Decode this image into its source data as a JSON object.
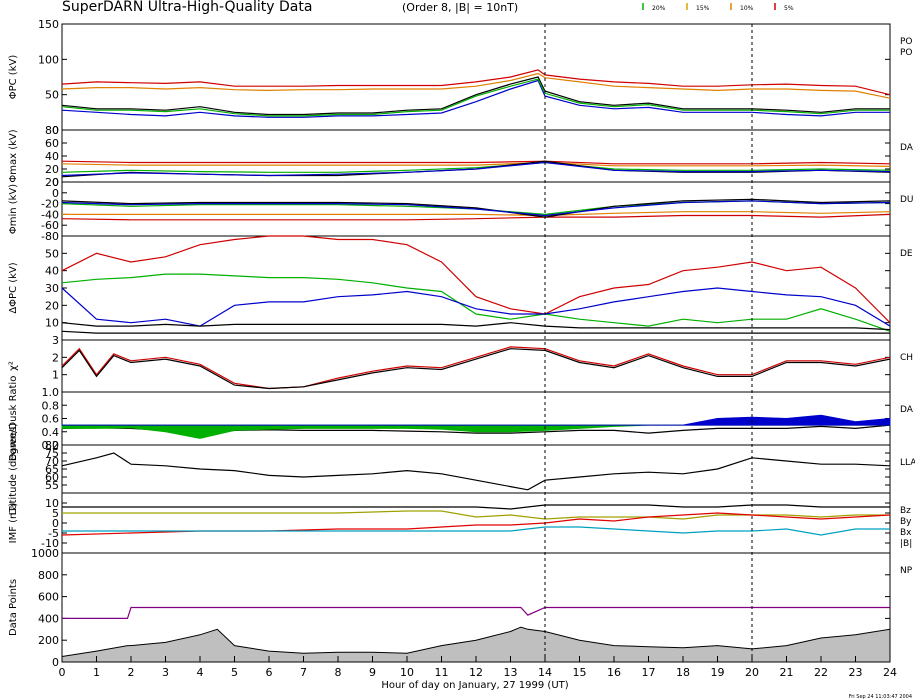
{
  "header": {
    "title": "SuperDARN Ultra-High-Quality Data",
    "subtitle": "(Order 8, |B| = 10nT)",
    "legend": [
      {
        "label": "20%",
        "color": "#00b000"
      },
      {
        "label": "15%",
        "color": "#e0a000"
      },
      {
        "label": "10%",
        "color": "#e08000"
      },
      {
        "label": "5%",
        "color": "#d00000"
      }
    ]
  },
  "footer": {
    "xlabel": "Hour of day on January, 27 1999 (UT)",
    "timestamp": "Fri Sep 24 11:03:47 2004"
  },
  "markers": {
    "vertical_lines_hours": [
      14,
      20
    ]
  },
  "chart_data": [
    {
      "type": "line",
      "ylabel": "ΦPC (kV)",
      "ylim": [
        0,
        150
      ],
      "yticks": [
        "0",
        "50",
        "100",
        "150"
      ],
      "right_labels": [
        "PO",
        "PO"
      ],
      "x": [
        0,
        1,
        2,
        3,
        4,
        5,
        6,
        7,
        8,
        9,
        10,
        11,
        12,
        13,
        13.8,
        14,
        15,
        16,
        17,
        18,
        19,
        20,
        21,
        22,
        23,
        24
      ],
      "series": [
        {
          "color": "#d00000",
          "values": [
            65,
            68,
            67,
            66,
            68,
            62,
            62,
            62,
            63,
            63,
            63,
            63,
            68,
            75,
            85,
            78,
            72,
            68,
            66,
            62,
            62,
            64,
            65,
            63,
            62,
            50
          ]
        },
        {
          "color": "#e08000",
          "values": [
            58,
            60,
            60,
            58,
            60,
            57,
            56,
            57,
            57,
            58,
            58,
            58,
            62,
            70,
            80,
            74,
            68,
            62,
            60,
            58,
            56,
            58,
            58,
            56,
            55,
            45
          ]
        },
        {
          "color": "#000000",
          "values": [
            35,
            30,
            30,
            28,
            33,
            25,
            22,
            22,
            24,
            24,
            28,
            30,
            50,
            65,
            75,
            55,
            40,
            35,
            38,
            30,
            30,
            30,
            28,
            25,
            30,
            30
          ]
        },
        {
          "color": "#0000cc",
          "values": [
            28,
            25,
            22,
            20,
            25,
            20,
            18,
            18,
            20,
            20,
            22,
            24,
            40,
            58,
            70,
            48,
            35,
            30,
            32,
            25,
            25,
            25,
            22,
            20,
            25,
            25
          ]
        },
        {
          "color": "#00b000",
          "values": [
            33,
            28,
            28,
            26,
            30,
            23,
            20,
            20,
            22,
            22,
            26,
            28,
            48,
            62,
            72,
            52,
            38,
            33,
            36,
            28,
            28,
            28,
            26,
            23,
            28,
            28
          ]
        }
      ]
    },
    {
      "type": "line",
      "ylabel": "Φmax (kV)",
      "ylim": [
        0,
        80
      ],
      "yticks": [
        "0",
        "20",
        "40",
        "60",
        "80"
      ],
      "right_labels": [
        "DA"
      ],
      "x": [
        0,
        2,
        4,
        6,
        8,
        10,
        12,
        14,
        16,
        18,
        20,
        22,
        24
      ],
      "series": [
        {
          "color": "#d00000",
          "values": [
            32,
            30,
            30,
            30,
            30,
            30,
            30,
            32,
            28,
            28,
            28,
            30,
            28
          ]
        },
        {
          "color": "#e08000",
          "values": [
            28,
            26,
            26,
            26,
            26,
            26,
            26,
            30,
            25,
            25,
            25,
            26,
            24
          ]
        },
        {
          "color": "#00b000",
          "values": [
            15,
            18,
            16,
            15,
            15,
            18,
            22,
            30,
            20,
            18,
            18,
            20,
            18
          ]
        },
        {
          "color": "#000000",
          "values": [
            8,
            15,
            12,
            10,
            10,
            15,
            20,
            32,
            18,
            15,
            15,
            18,
            15
          ]
        },
        {
          "color": "#0000cc",
          "values": [
            10,
            14,
            12,
            10,
            12,
            15,
            20,
            30,
            18,
            16,
            16,
            18,
            16
          ]
        }
      ]
    },
    {
      "type": "line",
      "ylabel": "Φmin (kV)",
      "ylim": [
        -80,
        20
      ],
      "yticks": [
        "-80",
        "-60",
        "-40",
        "-20",
        "0",
        "20"
      ],
      "right_labels": [
        "DU"
      ],
      "x": [
        0,
        2,
        4,
        6,
        8,
        10,
        12,
        14,
        16,
        18,
        20,
        22,
        24
      ],
      "series": [
        {
          "color": "#d00000",
          "values": [
            -48,
            -50,
            -50,
            -50,
            -50,
            -50,
            -48,
            -45,
            -45,
            -42,
            -42,
            -45,
            -40
          ]
        },
        {
          "color": "#e08000",
          "values": [
            -40,
            -40,
            -40,
            -40,
            -40,
            -40,
            -40,
            -42,
            -38,
            -35,
            -35,
            -38,
            -35
          ]
        },
        {
          "color": "#00b000",
          "values": [
            -20,
            -25,
            -22,
            -22,
            -22,
            -25,
            -30,
            -40,
            -25,
            -18,
            -15,
            -20,
            -18
          ]
        },
        {
          "color": "#000000",
          "values": [
            -15,
            -20,
            -18,
            -18,
            -18,
            -20,
            -28,
            -45,
            -25,
            -15,
            -12,
            -18,
            -15
          ]
        },
        {
          "color": "#0000cc",
          "values": [
            -18,
            -22,
            -20,
            -20,
            -20,
            -22,
            -30,
            -42,
            -28,
            -18,
            -15,
            -20,
            -18
          ]
        }
      ]
    },
    {
      "type": "line",
      "ylabel": "ΔΦPC (kV)",
      "ylim": [
        0,
        60
      ],
      "yticks": [
        "10",
        "20",
        "30",
        "40",
        "50"
      ],
      "right_labels": [
        "DE"
      ],
      "x": [
        0,
        1,
        2,
        3,
        4,
        5,
        6,
        7,
        8,
        9,
        10,
        11,
        12,
        13,
        14,
        15,
        16,
        17,
        18,
        19,
        20,
        21,
        22,
        23,
        24
      ],
      "series": [
        {
          "color": "#d00000",
          "values": [
            40,
            50,
            45,
            48,
            55,
            58,
            60,
            60,
            58,
            58,
            55,
            45,
            25,
            18,
            15,
            25,
            30,
            32,
            40,
            42,
            45,
            40,
            42,
            30,
            10
          ]
        },
        {
          "color": "#00b000",
          "values": [
            33,
            35,
            36,
            38,
            38,
            37,
            36,
            36,
            35,
            33,
            30,
            28,
            15,
            12,
            15,
            12,
            10,
            8,
            12,
            10,
            12,
            12,
            18,
            12,
            5
          ]
        },
        {
          "color": "#0000cc",
          "values": [
            30,
            12,
            10,
            12,
            8,
            20,
            22,
            22,
            25,
            26,
            28,
            25,
            18,
            15,
            15,
            18,
            22,
            25,
            28,
            30,
            28,
            26,
            25,
            20,
            8
          ]
        },
        {
          "color": "#000000",
          "values": [
            10,
            8,
            8,
            9,
            8,
            9,
            9,
            9,
            9,
            9,
            9,
            9,
            8,
            10,
            8,
            7,
            7,
            7,
            7,
            7,
            7,
            7,
            7,
            7,
            6
          ]
        },
        {
          "color": "#000000",
          "values": [
            5,
            4,
            4,
            4,
            4,
            4,
            4,
            4,
            4,
            4,
            4,
            4,
            4,
            4,
            4,
            4,
            4,
            4,
            4,
            4,
            4,
            4,
            4,
            4,
            4
          ]
        }
      ]
    },
    {
      "type": "line",
      "ylabel": "χ²",
      "ylim": [
        0,
        3
      ],
      "yticks": [
        "1",
        "2",
        "3"
      ],
      "right_labels": [
        "CH"
      ],
      "x": [
        0,
        0.5,
        1,
        1.5,
        2,
        3,
        4,
        5,
        6,
        7,
        8,
        9,
        10,
        11,
        12,
        13,
        14,
        15,
        16,
        17,
        18,
        19,
        20,
        21,
        22,
        23,
        24
      ],
      "series": [
        {
          "color": "#d00000",
          "values": [
            1.5,
            2.5,
            1,
            2.2,
            1.8,
            2,
            1.6,
            0.5,
            0.2,
            0.3,
            0.8,
            1.2,
            1.5,
            1.4,
            2,
            2.6,
            2.5,
            1.8,
            1.5,
            2.2,
            1.5,
            1,
            1,
            1.8,
            1.8,
            1.6,
            2
          ]
        },
        {
          "color": "#000000",
          "values": [
            1.4,
            2.4,
            0.9,
            2.1,
            1.7,
            1.9,
            1.5,
            0.4,
            0.2,
            0.3,
            0.7,
            1.1,
            1.4,
            1.3,
            1.9,
            2.5,
            2.4,
            1.7,
            1.4,
            2.1,
            1.4,
            0.9,
            0.9,
            1.7,
            1.7,
            1.5,
            1.9
          ]
        }
      ]
    },
    {
      "type": "area",
      "ylabel": "Dawn/Dusk Ratio",
      "ylim": [
        0.2,
        1
      ],
      "yticks": [
        "0.2",
        "0.4",
        "0.6",
        "0.8",
        "1.0"
      ],
      "right_labels": [
        "DA"
      ],
      "x": [
        0,
        1,
        2,
        3,
        4,
        5,
        6,
        7,
        8,
        9,
        10,
        11,
        12,
        13,
        14,
        15,
        16,
        17,
        18,
        19,
        20,
        21,
        22,
        23,
        24
      ],
      "series": [
        {
          "color": "#000000",
          "values": [
            0.45,
            0.46,
            0.45,
            0.42,
            0.35,
            0.42,
            0.43,
            0.42,
            0.42,
            0.42,
            0.41,
            0.4,
            0.38,
            0.38,
            0.4,
            0.42,
            0.42,
            0.38,
            0.42,
            0.45,
            0.45,
            0.45,
            0.48,
            0.45,
            0.5
          ]
        },
        {
          "color": "#00b000",
          "name_hint": "fill below 0.5",
          "values": [
            0.45,
            0.45,
            0.46,
            0.4,
            0.3,
            0.42,
            0.44,
            0.45,
            0.45,
            0.45,
            0.45,
            0.44,
            0.4,
            0.4,
            0.42,
            0.45,
            0.48,
            0.5,
            0.5,
            0.5,
            0.5,
            0.5,
            0.5,
            0.5,
            0.5
          ]
        },
        {
          "color": "#0000cc",
          "name_hint": "fill above 0.5",
          "values": [
            0.5,
            0.5,
            0.5,
            0.5,
            0.5,
            0.5,
            0.5,
            0.5,
            0.5,
            0.5,
            0.5,
            0.5,
            0.5,
            0.5,
            0.5,
            0.5,
            0.5,
            0.5,
            0.5,
            0.6,
            0.62,
            0.6,
            0.65,
            0.55,
            0.6
          ]
        }
      ]
    },
    {
      "type": "line",
      "ylabel": "Latitude (degrees)",
      "ylim": [
        50,
        80
      ],
      "yticks": [
        "55",
        "60",
        "65",
        "70",
        "75",
        "80"
      ],
      "right_labels": [
        "LLA"
      ],
      "x": [
        0,
        1,
        1.5,
        2,
        3,
        4,
        5,
        6,
        7,
        8,
        9,
        10,
        11,
        12,
        13,
        13.5,
        14,
        15,
        16,
        17,
        18,
        19,
        20,
        21,
        22,
        23,
        24
      ],
      "series": [
        {
          "color": "#000000",
          "values": [
            67,
            72,
            75,
            68,
            67,
            65,
            64,
            61,
            60,
            61,
            62,
            64,
            62,
            58,
            54,
            52,
            58,
            60,
            62,
            63,
            62,
            65,
            72,
            70,
            68,
            68,
            67
          ]
        }
      ]
    },
    {
      "type": "line",
      "ylabel": "IMF (nT)",
      "ylim": [
        -15,
        15
      ],
      "yticks": [
        "-10",
        "-5",
        "0",
        "5",
        "10"
      ],
      "right_labels": [
        "Bz",
        "By",
        "Bx",
        "|B|"
      ],
      "x": [
        0,
        2,
        4,
        6,
        8,
        10,
        11,
        12,
        13,
        14,
        15,
        16,
        17,
        18,
        19,
        20,
        21,
        22,
        23,
        24
      ],
      "series": [
        {
          "color": "#000000",
          "values": [
            8,
            8,
            8,
            8,
            8,
            8,
            8,
            8,
            7,
            9,
            9,
            9,
            9,
            8,
            8,
            9,
            9,
            8,
            8,
            8
          ]
        },
        {
          "color": "#a0a000",
          "values": [
            5,
            5,
            5,
            5,
            5,
            6,
            6,
            3,
            4,
            2,
            3,
            3,
            3,
            2,
            4,
            4,
            4,
            3,
            4,
            4
          ]
        },
        {
          "color": "#e00000",
          "values": [
            -6,
            -5,
            -4,
            -4,
            -3,
            -3,
            -2,
            -1,
            -1,
            0,
            2,
            1,
            3,
            4,
            5,
            4,
            3,
            2,
            3,
            4
          ]
        },
        {
          "color": "#00a0c0",
          "values": [
            -4,
            -4,
            -4,
            -4,
            -4,
            -4,
            -4,
            -4,
            -4,
            -2,
            -2,
            -3,
            -4,
            -5,
            -4,
            -4,
            -3,
            -6,
            -3,
            -3
          ]
        }
      ]
    },
    {
      "type": "area",
      "ylabel": "Data Points",
      "ylim": [
        0,
        1000
      ],
      "yticks": [
        "0",
        "200",
        "400",
        "600",
        "800",
        "1000"
      ],
      "right_labels": [
        "NP"
      ],
      "x": [
        0,
        1,
        1.9,
        2,
        3,
        4,
        4.5,
        5,
        6,
        7,
        8,
        9,
        10,
        11,
        12,
        13,
        13.3,
        13.5,
        14,
        15,
        16,
        17,
        18,
        19,
        20,
        21,
        22,
        23,
        24
      ],
      "series": [
        {
          "color": "#800080",
          "name_hint": "step",
          "values": [
            400,
            400,
            400,
            500,
            500,
            500,
            500,
            500,
            500,
            500,
            500,
            500,
            500,
            500,
            500,
            500,
            500,
            430,
            500,
            500,
            500,
            500,
            500,
            500,
            500,
            500,
            500,
            500,
            500
          ]
        },
        {
          "color": "#000000",
          "name_hint": "gray filled",
          "values": [
            50,
            100,
            150,
            150,
            180,
            250,
            300,
            150,
            100,
            80,
            90,
            90,
            80,
            150,
            200,
            280,
            320,
            300,
            280,
            200,
            150,
            140,
            130,
            150,
            120,
            150,
            220,
            250,
            300
          ]
        }
      ]
    }
  ]
}
